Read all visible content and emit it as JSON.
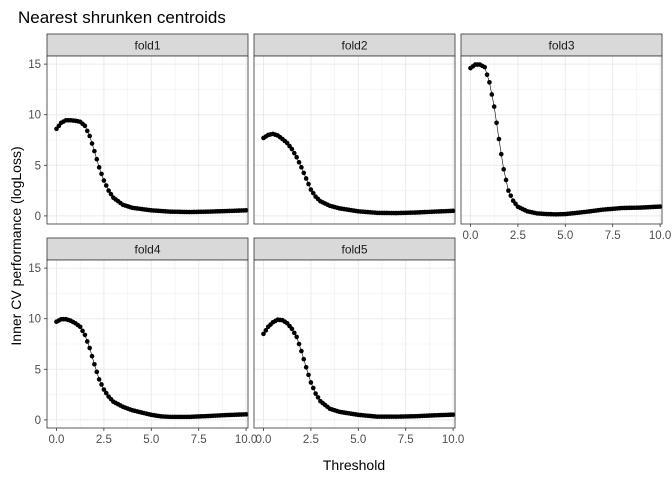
{
  "chart_data": {
    "type": "scatter",
    "title": "Nearest shrunken centroids",
    "xlabel": "Threshold",
    "ylabel": "Inner CV performance (logLoss)",
    "xlim": [
      -0.5,
      10.1
    ],
    "ylim": [
      -0.8,
      15.8
    ],
    "x_ticks": [
      0,
      2.5,
      5,
      7.5,
      10
    ],
    "x_tick_labels": [
      "0.0",
      "2.5",
      "5.0",
      "7.5",
      "10.0"
    ],
    "y_ticks": [
      0,
      5,
      10,
      15
    ],
    "y_tick_labels": [
      "0",
      "5",
      "10",
      "15"
    ],
    "grid": true,
    "facet_layout": "3 columns x 2 rows, shared axes",
    "point_color": "#000000",
    "strip_fill": "#d9d9d9",
    "series": [
      {
        "name": "fold1",
        "shape": [
          [
            0,
            8.6
          ],
          [
            0.25,
            9.2
          ],
          [
            0.5,
            9.45
          ],
          [
            0.75,
            9.45
          ],
          [
            1.0,
            9.4
          ],
          [
            1.25,
            9.3
          ],
          [
            1.5,
            8.9
          ],
          [
            1.75,
            7.9
          ],
          [
            2.0,
            6.4
          ],
          [
            2.25,
            4.8
          ],
          [
            2.5,
            3.5
          ],
          [
            2.75,
            2.5
          ],
          [
            3.0,
            1.8
          ],
          [
            3.5,
            1.1
          ],
          [
            4.0,
            0.8
          ],
          [
            5.0,
            0.55
          ],
          [
            6.0,
            0.42
          ],
          [
            7.0,
            0.38
          ],
          [
            8.0,
            0.42
          ],
          [
            9.0,
            0.48
          ],
          [
            10.0,
            0.55
          ]
        ]
      },
      {
        "name": "fold2",
        "shape": [
          [
            0,
            7.7
          ],
          [
            0.25,
            8.0
          ],
          [
            0.5,
            8.1
          ],
          [
            0.75,
            7.95
          ],
          [
            1.0,
            7.6
          ],
          [
            1.25,
            7.2
          ],
          [
            1.5,
            6.6
          ],
          [
            1.75,
            5.8
          ],
          [
            2.0,
            4.8
          ],
          [
            2.25,
            3.7
          ],
          [
            2.5,
            2.6
          ],
          [
            2.75,
            1.9
          ],
          [
            3.0,
            1.45
          ],
          [
            3.5,
            1.0
          ],
          [
            4.0,
            0.75
          ],
          [
            5.0,
            0.45
          ],
          [
            6.0,
            0.3
          ],
          [
            7.0,
            0.28
          ],
          [
            8.0,
            0.33
          ],
          [
            9.0,
            0.42
          ],
          [
            10.0,
            0.5
          ]
        ]
      },
      {
        "name": "fold3",
        "shape": [
          [
            0,
            14.6
          ],
          [
            0.25,
            14.95
          ],
          [
            0.5,
            14.95
          ],
          [
            0.75,
            14.7
          ],
          [
            1.0,
            13.2
          ],
          [
            1.25,
            10.8
          ],
          [
            1.5,
            7.6
          ],
          [
            1.75,
            4.6
          ],
          [
            2.0,
            2.5
          ],
          [
            2.25,
            1.5
          ],
          [
            2.5,
            0.9
          ],
          [
            3.0,
            0.45
          ],
          [
            3.5,
            0.25
          ],
          [
            4.0,
            0.18
          ],
          [
            4.5,
            0.15
          ],
          [
            5.0,
            0.18
          ],
          [
            6.0,
            0.38
          ],
          [
            7.0,
            0.62
          ],
          [
            8.0,
            0.78
          ],
          [
            9.0,
            0.82
          ],
          [
            10.0,
            0.92
          ]
        ]
      },
      {
        "name": "fold4",
        "shape": [
          [
            0,
            9.7
          ],
          [
            0.25,
            9.95
          ],
          [
            0.5,
            9.95
          ],
          [
            0.75,
            9.8
          ],
          [
            1.0,
            9.55
          ],
          [
            1.25,
            9.2
          ],
          [
            1.5,
            8.4
          ],
          [
            1.75,
            7.1
          ],
          [
            2.0,
            5.5
          ],
          [
            2.25,
            4.0
          ],
          [
            2.5,
            3.0
          ],
          [
            2.75,
            2.3
          ],
          [
            3.0,
            1.8
          ],
          [
            3.5,
            1.3
          ],
          [
            4.0,
            0.95
          ],
          [
            5.0,
            0.5
          ],
          [
            5.5,
            0.35
          ],
          [
            6.0,
            0.3
          ],
          [
            7.0,
            0.3
          ],
          [
            8.0,
            0.38
          ],
          [
            9.0,
            0.48
          ],
          [
            10.0,
            0.55
          ]
        ]
      },
      {
        "name": "fold5",
        "shape": [
          [
            0,
            8.5
          ],
          [
            0.25,
            9.2
          ],
          [
            0.5,
            9.65
          ],
          [
            0.75,
            9.9
          ],
          [
            1.0,
            9.85
          ],
          [
            1.25,
            9.55
          ],
          [
            1.5,
            9.0
          ],
          [
            1.75,
            8.2
          ],
          [
            2.0,
            6.8
          ],
          [
            2.25,
            5.2
          ],
          [
            2.5,
            3.7
          ],
          [
            2.75,
            2.6
          ],
          [
            3.0,
            1.85
          ],
          [
            3.5,
            1.1
          ],
          [
            4.0,
            0.8
          ],
          [
            5.0,
            0.5
          ],
          [
            6.0,
            0.32
          ],
          [
            7.0,
            0.32
          ],
          [
            8.0,
            0.36
          ],
          [
            9.0,
            0.45
          ],
          [
            10.0,
            0.52
          ]
        ]
      }
    ]
  }
}
